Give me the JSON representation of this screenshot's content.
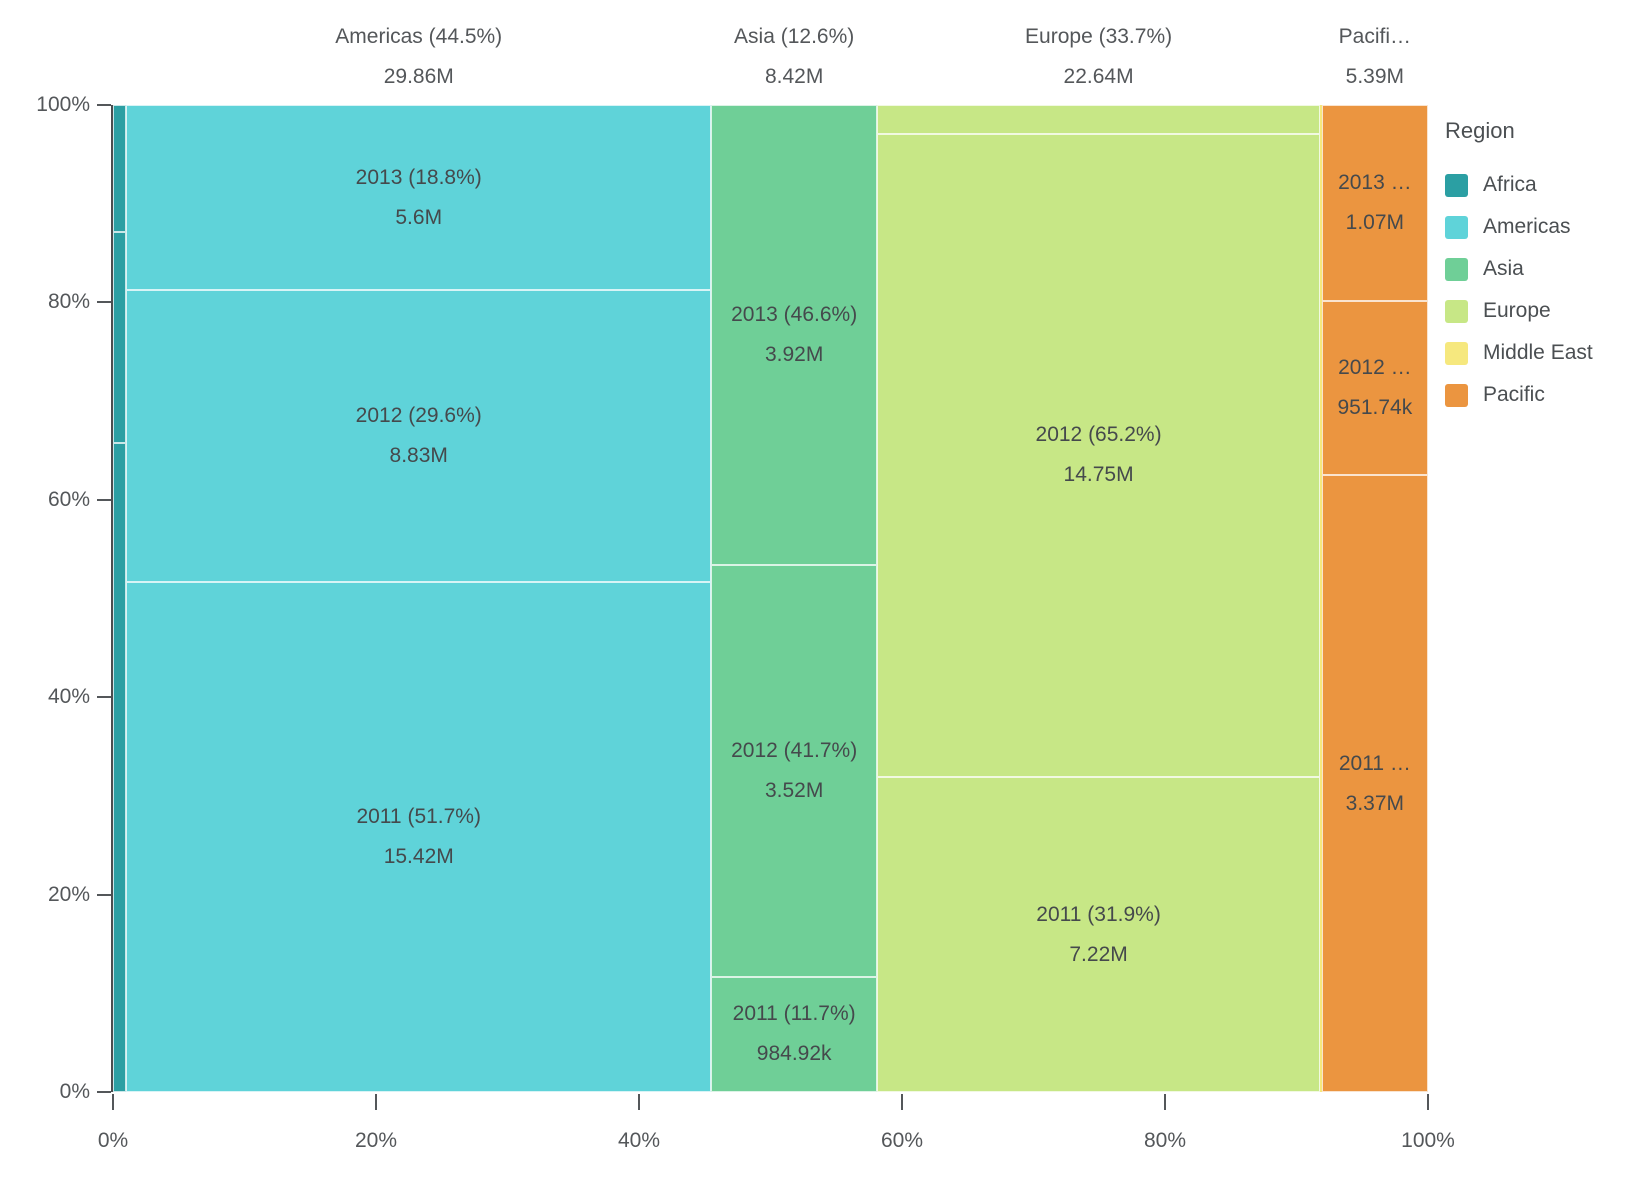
{
  "chart_data": {
    "type": "marimekko",
    "note": "100% stacked mosaic chart: region share of total on x-axis, per-year share within each region on y-axis",
    "title": "",
    "x_axis": {
      "ticks": [
        "0%",
        "20%",
        "40%",
        "60%",
        "80%",
        "100%"
      ]
    },
    "y_axis": {
      "ticks": [
        "100%",
        "80%",
        "60%",
        "40%",
        "20%",
        "0%"
      ]
    },
    "legend": {
      "title": "Region",
      "entries": [
        {
          "label": "Africa",
          "color": "#2b9fa3"
        },
        {
          "label": "Americas",
          "color": "#5fd3d9"
        },
        {
          "label": "Asia",
          "color": "#6fcf97"
        },
        {
          "label": "Europe",
          "color": "#c7e786"
        },
        {
          "label": "Middle East",
          "color": "#f6e87e"
        },
        {
          "label": "Pacific",
          "color": "#eb9540"
        }
      ]
    },
    "columns": [
      {
        "region": "Africa",
        "color": "#2b9fa3",
        "width_pct": 1.0,
        "header": null,
        "segments": [
          {
            "year": "2013",
            "pct": 12.9,
            "label1": null,
            "label2": null
          },
          {
            "year": "2012",
            "pct": 21.3,
            "label1": null,
            "label2": null
          },
          {
            "year": "2011",
            "pct": 65.8,
            "label1": null,
            "label2": null
          }
        ]
      },
      {
        "region": "Americas",
        "color": "#5fd3d9",
        "width_pct": 44.5,
        "header": {
          "line1": "Americas (44.5%)",
          "line2": "29.86M"
        },
        "segments": [
          {
            "year": "2013",
            "pct": 18.8,
            "label1": "2013 (18.8%)",
            "label2": "5.6M"
          },
          {
            "year": "2012",
            "pct": 29.6,
            "label1": "2012 (29.6%)",
            "label2": "8.83M"
          },
          {
            "year": "2011",
            "pct": 51.7,
            "label1": "2011 (51.7%)",
            "label2": "15.42M"
          }
        ]
      },
      {
        "region": "Asia",
        "color": "#6fcf97",
        "width_pct": 12.6,
        "header": {
          "line1": "Asia (12.6%)",
          "line2": "8.42M"
        },
        "segments": [
          {
            "year": "2013",
            "pct": 46.6,
            "label1": "2013 (46.6%)",
            "label2": "3.92M"
          },
          {
            "year": "2012",
            "pct": 41.7,
            "label1": "2012 (41.7%)",
            "label2": "3.52M"
          },
          {
            "year": "2011",
            "pct": 11.7,
            "label1": "2011 (11.7%)",
            "label2": "984.92k"
          }
        ]
      },
      {
        "region": "Europe",
        "color": "#c7e786",
        "width_pct": 33.7,
        "header": {
          "line1": "Europe (33.7%)",
          "line2": "22.64M"
        },
        "segments": [
          {
            "year": "2013",
            "pct": 2.9,
            "label1": null,
            "label2": null
          },
          {
            "year": "2012",
            "pct": 65.2,
            "label1": "2012 (65.2%)",
            "label2": "14.75M"
          },
          {
            "year": "2011",
            "pct": 31.9,
            "label1": "2011 (31.9%)",
            "label2": "7.22M"
          }
        ]
      },
      {
        "region": "Middle East",
        "color": "#f6e87e",
        "width_pct": 0.12,
        "header": null,
        "segments": [
          {
            "year": "all",
            "pct": 100,
            "label1": null,
            "label2": null
          }
        ]
      },
      {
        "region": "Pacific",
        "color": "#eb9540",
        "width_pct": 8.08,
        "header": {
          "line1": "Pacifi…",
          "line2": "5.39M"
        },
        "segments": [
          {
            "year": "2013",
            "pct": 19.85,
            "label1": "2013 …",
            "label2": "1.07M"
          },
          {
            "year": "2012",
            "pct": 17.66,
            "label1": "2012 …",
            "label2": "951.74k"
          },
          {
            "year": "2011",
            "pct": 62.52,
            "label1": "2011 …",
            "label2": "3.37M"
          }
        ]
      }
    ]
  }
}
